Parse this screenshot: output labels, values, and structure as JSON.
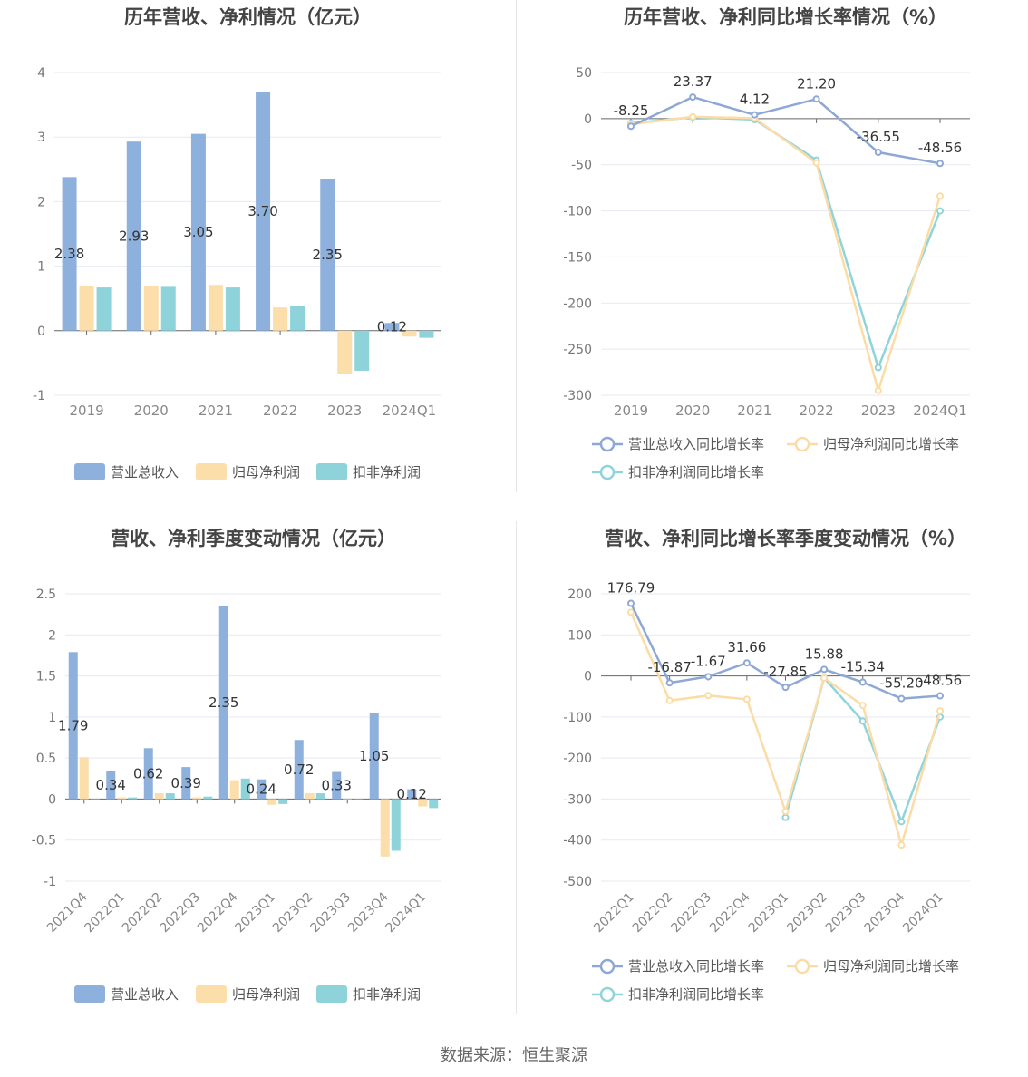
{
  "source_text": "数据来源：恒生聚源",
  "colors": {
    "revenue": "#8eb0dc",
    "net_profit": "#fcdeab",
    "deducted_profit": "#8dd3d9",
    "line_revenue": "#8ea8d6",
    "line_net": "#fbdca6",
    "line_deducted": "#8fd4d9"
  },
  "chart_data": [
    {
      "id": "annual_bars",
      "type": "bar",
      "title": "历年营收、净利情况（亿元）",
      "categories": [
        "2019",
        "2020",
        "2021",
        "2022",
        "2023",
        "2024Q1"
      ],
      "series": [
        {
          "name": "营业总收入",
          "values": [
            2.38,
            2.93,
            3.05,
            3.7,
            2.35,
            0.12
          ]
        },
        {
          "name": "归母净利润",
          "values": [
            0.69,
            0.7,
            0.71,
            0.36,
            -0.67,
            -0.09
          ]
        },
        {
          "name": "扣非净利润",
          "values": [
            0.67,
            0.68,
            0.67,
            0.38,
            -0.62,
            -0.11
          ]
        }
      ],
      "data_labels": [
        "2.38",
        "2.93",
        "3.05",
        "3.70",
        "2.35",
        "0.12"
      ],
      "ylim": [
        -1,
        4
      ],
      "yticks": [
        "-1",
        "0",
        "1",
        "2",
        "3",
        "4"
      ]
    },
    {
      "id": "annual_growth",
      "type": "line",
      "title": "历年营收、净利同比增长率情况（%）",
      "categories": [
        "2019",
        "2020",
        "2021",
        "2022",
        "2023",
        "2024Q1"
      ],
      "series": [
        {
          "name": "营业总收入同比增长率",
          "values": [
            -8.25,
            23.37,
            4.12,
            21.2,
            -36.55,
            -48.56
          ]
        },
        {
          "name": "归母净利润同比增长率",
          "values": [
            -6.0,
            2.0,
            0.5,
            -48.0,
            -295.0,
            -84.0
          ]
        },
        {
          "name": "扣非净利润同比增长率",
          "values": [
            -5.0,
            1.5,
            -1.0,
            -45.0,
            -270.0,
            -100.0
          ]
        }
      ],
      "data_labels": [
        "-8.25",
        "23.37",
        "4.12",
        "21.20",
        "-36.55",
        "-48.56"
      ],
      "ylim": [
        -300,
        50
      ],
      "yticks": [
        "-300",
        "-250",
        "-200",
        "-150",
        "-100",
        "-50",
        "0",
        "50"
      ]
    },
    {
      "id": "quarterly_bars",
      "type": "bar",
      "title": "营收、净利季度变动情况（亿元）",
      "categories": [
        "2021Q4",
        "2022Q1",
        "2022Q2",
        "2022Q3",
        "2022Q4",
        "2023Q1",
        "2023Q2",
        "2023Q3",
        "2023Q4",
        "2024Q1"
      ],
      "series": [
        {
          "name": "营业总收入",
          "values": [
            1.79,
            0.34,
            0.62,
            0.39,
            2.35,
            0.24,
            0.72,
            0.33,
            1.05,
            0.12
          ]
        },
        {
          "name": "归母净利润",
          "values": [
            0.51,
            0.02,
            0.07,
            0.02,
            0.23,
            -0.07,
            0.07,
            0.0,
            -0.7,
            -0.09
          ]
        },
        {
          "name": "扣非净利润",
          "values": [
            0.0,
            0.02,
            0.07,
            0.03,
            0.25,
            -0.06,
            0.07,
            0.0,
            -0.63,
            -0.11
          ]
        }
      ],
      "data_labels": [
        "1.79",
        "0.34",
        "0.62",
        "0.39",
        "2.35",
        "0.24",
        "0.72",
        "0.33",
        "1.05",
        "0.12"
      ],
      "ylim": [
        -1,
        2.5
      ],
      "yticks": [
        "-1",
        "-0.5",
        "0",
        "0.5",
        "1",
        "1.5",
        "2",
        "2.5"
      ]
    },
    {
      "id": "quarterly_growth",
      "type": "line",
      "title": "营收、净利同比增长率季度变动情况（%）",
      "categories": [
        "2022Q1",
        "2022Q2",
        "2022Q3",
        "2022Q4",
        "2023Q1",
        "2023Q2",
        "2023Q3",
        "2023Q4",
        "2024Q1"
      ],
      "series": [
        {
          "name": "营业总收入同比增长率",
          "values": [
            176.79,
            -16.87,
            -1.67,
            31.66,
            -27.85,
            15.88,
            -15.34,
            -55.2,
            -48.56
          ]
        },
        {
          "name": "归母净利润同比增长率",
          "values": [
            155.0,
            -60.0,
            -48.0,
            -57.0,
            -330.0,
            -5.0,
            -72.0,
            -412.0,
            -85.0
          ]
        },
        {
          "name": "扣非净利润同比增长率",
          "values": [
            null,
            null,
            null,
            null,
            -345.0,
            -5.0,
            -110.0,
            -355.0,
            -100.0
          ]
        }
      ],
      "data_labels": [
        "176.79",
        "-16.87",
        "-1.67",
        "31.66",
        "-27.85",
        "15.88",
        "-15.34",
        "-55.20",
        "-48.56"
      ],
      "ylim": [
        -500,
        200
      ],
      "yticks": [
        "-500",
        "-400",
        "-300",
        "-200",
        "-100",
        "0",
        "100",
        "200"
      ]
    }
  ]
}
